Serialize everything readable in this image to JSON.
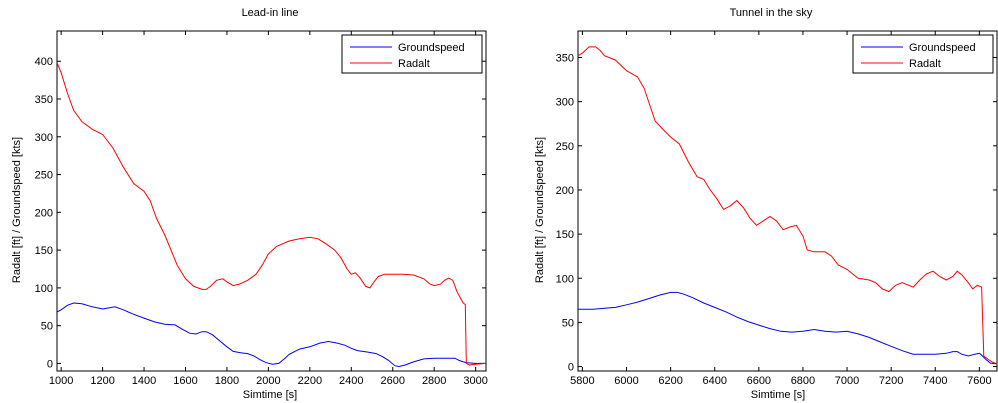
{
  "chart_data": [
    {
      "type": "line",
      "title": "Lead-in line",
      "xlabel": "Simtime [s]",
      "ylabel": "Radalt [ft]     /  Groundspeed [kts]",
      "xlim": [
        980,
        3050
      ],
      "ylim": [
        -10,
        440
      ],
      "xticks": [
        1000,
        1200,
        1400,
        1600,
        1800,
        2000,
        2200,
        2400,
        2600,
        2800,
        3000
      ],
      "yticks": [
        0,
        50,
        100,
        150,
        200,
        250,
        300,
        350,
        400
      ],
      "legend_position": "top-right",
      "grid": false,
      "series": [
        {
          "name": "Groundspeed",
          "color": "#0000ff",
          "points": [
            [
              980,
              68
            ],
            [
              1000,
              71
            ],
            [
              1030,
              77
            ],
            [
              1060,
              80
            ],
            [
              1100,
              79
            ],
            [
              1150,
              75
            ],
            [
              1200,
              72
            ],
            [
              1260,
              75
            ],
            [
              1300,
              71
            ],
            [
              1350,
              65
            ],
            [
              1400,
              60
            ],
            [
              1450,
              55
            ],
            [
              1500,
              52
            ],
            [
              1550,
              51
            ],
            [
              1580,
              46
            ],
            [
              1620,
              40
            ],
            [
              1650,
              39
            ],
            [
              1680,
              42
            ],
            [
              1700,
              42
            ],
            [
              1730,
              38
            ],
            [
              1760,
              31
            ],
            [
              1800,
              22
            ],
            [
              1830,
              16
            ],
            [
              1870,
              14
            ],
            [
              1900,
              13
            ],
            [
              1930,
              10
            ],
            [
              1960,
              5
            ],
            [
              1990,
              1
            ],
            [
              2020,
              -1
            ],
            [
              2050,
              0
            ],
            [
              2080,
              7
            ],
            [
              2100,
              12
            ],
            [
              2150,
              19
            ],
            [
              2200,
              22
            ],
            [
              2250,
              27
            ],
            [
              2290,
              29
            ],
            [
              2330,
              27
            ],
            [
              2370,
              24
            ],
            [
              2400,
              20
            ],
            [
              2430,
              17
            ],
            [
              2480,
              15
            ],
            [
              2520,
              13
            ],
            [
              2550,
              9
            ],
            [
              2580,
              4
            ],
            [
              2610,
              -3
            ],
            [
              2630,
              -4
            ],
            [
              2660,
              -2
            ],
            [
              2700,
              2
            ],
            [
              2750,
              6
            ],
            [
              2800,
              7
            ],
            [
              2850,
              7
            ],
            [
              2900,
              7
            ],
            [
              2920,
              4
            ],
            [
              2940,
              2
            ],
            [
              2960,
              1
            ],
            [
              3000,
              0
            ],
            [
              3050,
              0
            ]
          ]
        },
        {
          "name": "Radalt",
          "color": "#ff0000",
          "points": [
            [
              980,
              398
            ],
            [
              1000,
              385
            ],
            [
              1030,
              358
            ],
            [
              1060,
              335
            ],
            [
              1100,
              320
            ],
            [
              1150,
              310
            ],
            [
              1200,
              303
            ],
            [
              1250,
              285
            ],
            [
              1300,
              260
            ],
            [
              1350,
              238
            ],
            [
              1400,
              228
            ],
            [
              1430,
              215
            ],
            [
              1460,
              192
            ],
            [
              1500,
              170
            ],
            [
              1530,
              150
            ],
            [
              1560,
              130
            ],
            [
              1600,
              112
            ],
            [
              1640,
              102
            ],
            [
              1680,
              98
            ],
            [
              1700,
              98
            ],
            [
              1720,
              102
            ],
            [
              1750,
              110
            ],
            [
              1780,
              112
            ],
            [
              1800,
              108
            ],
            [
              1830,
              103
            ],
            [
              1860,
              105
            ],
            [
              1900,
              110
            ],
            [
              1940,
              118
            ],
            [
              1970,
              130
            ],
            [
              2000,
              145
            ],
            [
              2040,
              155
            ],
            [
              2100,
              162
            ],
            [
              2150,
              165
            ],
            [
              2200,
              167
            ],
            [
              2240,
              165
            ],
            [
              2280,
              158
            ],
            [
              2320,
              150
            ],
            [
              2350,
              140
            ],
            [
              2380,
              125
            ],
            [
              2400,
              118
            ],
            [
              2420,
              120
            ],
            [
              2440,
              114
            ],
            [
              2470,
              102
            ],
            [
              2490,
              100
            ],
            [
              2510,
              108
            ],
            [
              2530,
              115
            ],
            [
              2560,
              118
            ],
            [
              2600,
              118
            ],
            [
              2650,
              118
            ],
            [
              2700,
              117
            ],
            [
              2750,
              112
            ],
            [
              2780,
              105
            ],
            [
              2800,
              103
            ],
            [
              2830,
              105
            ],
            [
              2850,
              110
            ],
            [
              2870,
              113
            ],
            [
              2890,
              110
            ],
            [
              2910,
              95
            ],
            [
              2930,
              85
            ],
            [
              2940,
              80
            ],
            [
              2950,
              78
            ],
            [
              2955,
              0
            ],
            [
              2970,
              -2
            ],
            [
              3000,
              -1
            ],
            [
              3050,
              0
            ]
          ]
        }
      ]
    },
    {
      "type": "line",
      "title": "Tunnel in the sky",
      "xlabel": "Simtime [s]",
      "ylabel": "Radalt [ft]     /  Groundspeed [kts]",
      "xlim": [
        5780,
        7680
      ],
      "ylim": [
        -5,
        380
      ],
      "xticks": [
        5800,
        6000,
        6200,
        6400,
        6600,
        6800,
        7000,
        7200,
        7400,
        7600
      ],
      "yticks": [
        0,
        50,
        100,
        150,
        200,
        250,
        300,
        350
      ],
      "legend_position": "top-right",
      "grid": false,
      "series": [
        {
          "name": "Groundspeed",
          "color": "#0000ff",
          "points": [
            [
              5780,
              65
            ],
            [
              5800,
              65
            ],
            [
              5850,
              65
            ],
            [
              5900,
              66
            ],
            [
              5950,
              67
            ],
            [
              6000,
              70
            ],
            [
              6050,
              73
            ],
            [
              6100,
              77
            ],
            [
              6150,
              81
            ],
            [
              6200,
              84
            ],
            [
              6230,
              84
            ],
            [
              6260,
              82
            ],
            [
              6300,
              78
            ],
            [
              6350,
              72
            ],
            [
              6400,
              67
            ],
            [
              6450,
              62
            ],
            [
              6500,
              56
            ],
            [
              6550,
              51
            ],
            [
              6600,
              47
            ],
            [
              6650,
              43
            ],
            [
              6700,
              40
            ],
            [
              6750,
              39
            ],
            [
              6800,
              40
            ],
            [
              6850,
              42
            ],
            [
              6900,
              40
            ],
            [
              6950,
              39
            ],
            [
              7000,
              40
            ],
            [
              7050,
              37
            ],
            [
              7100,
              33
            ],
            [
              7150,
              28
            ],
            [
              7200,
              23
            ],
            [
              7250,
              18
            ],
            [
              7300,
              14
            ],
            [
              7350,
              14
            ],
            [
              7400,
              14
            ],
            [
              7450,
              15
            ],
            [
              7480,
              17
            ],
            [
              7500,
              17
            ],
            [
              7520,
              14
            ],
            [
              7550,
              12
            ],
            [
              7580,
              14
            ],
            [
              7600,
              15
            ],
            [
              7610,
              13
            ],
            [
              7630,
              8
            ],
            [
              7650,
              4
            ],
            [
              7680,
              3
            ]
          ]
        },
        {
          "name": "Radalt",
          "color": "#ff0000",
          "points": [
            [
              5780,
              352
            ],
            [
              5800,
              355
            ],
            [
              5830,
              362
            ],
            [
              5860,
              362
            ],
            [
              5880,
              358
            ],
            [
              5900,
              352
            ],
            [
              5950,
              347
            ],
            [
              6000,
              335
            ],
            [
              6050,
              328
            ],
            [
              6080,
              315
            ],
            [
              6100,
              300
            ],
            [
              6130,
              278
            ],
            [
              6160,
              270
            ],
            [
              6200,
              260
            ],
            [
              6240,
              252
            ],
            [
              6280,
              232
            ],
            [
              6320,
              215
            ],
            [
              6350,
              212
            ],
            [
              6380,
              200
            ],
            [
              6410,
              190
            ],
            [
              6440,
              178
            ],
            [
              6470,
              182
            ],
            [
              6500,
              188
            ],
            [
              6530,
              180
            ],
            [
              6560,
              168
            ],
            [
              6590,
              160
            ],
            [
              6620,
              165
            ],
            [
              6650,
              170
            ],
            [
              6680,
              165
            ],
            [
              6710,
              155
            ],
            [
              6740,
              158
            ],
            [
              6770,
              160
            ],
            [
              6800,
              148
            ],
            [
              6820,
              132
            ],
            [
              6850,
              130
            ],
            [
              6900,
              130
            ],
            [
              6930,
              125
            ],
            [
              6960,
              115
            ],
            [
              7000,
              110
            ],
            [
              7050,
              100
            ],
            [
              7100,
              98
            ],
            [
              7130,
              95
            ],
            [
              7160,
              88
            ],
            [
              7190,
              85
            ],
            [
              7220,
              92
            ],
            [
              7250,
              95
            ],
            [
              7280,
              92
            ],
            [
              7300,
              90
            ],
            [
              7330,
              98
            ],
            [
              7360,
              105
            ],
            [
              7390,
              108
            ],
            [
              7420,
              102
            ],
            [
              7450,
              98
            ],
            [
              7480,
              102
            ],
            [
              7500,
              108
            ],
            [
              7520,
              104
            ],
            [
              7550,
              95
            ],
            [
              7570,
              88
            ],
            [
              7590,
              92
            ],
            [
              7610,
              90
            ],
            [
              7620,
              12
            ],
            [
              7640,
              8
            ],
            [
              7660,
              5
            ],
            [
              7680,
              3
            ]
          ]
        }
      ]
    }
  ]
}
